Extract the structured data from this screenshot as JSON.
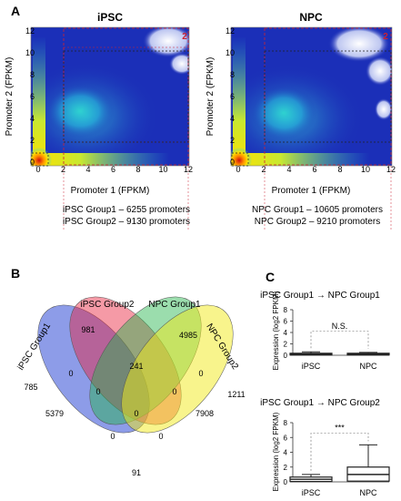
{
  "panel_labels": {
    "A": "A",
    "B": "B",
    "C": "C"
  },
  "colors": {
    "heat_low": "#1b2fb8",
    "heat_mid": "#2fd6d0",
    "heat_high": "#ffe000",
    "heat_peak": "#d21010",
    "box_red": "#cc2233",
    "box_black": "#222222",
    "venn_blue": "#2f4bd6",
    "venn_red": "#e8203a",
    "venn_green": "#22b34a",
    "venn_yellow": "#f2ea1a"
  },
  "chart_data": [
    {
      "type": "heatmap",
      "title": "iPSC",
      "xlabel": "Promoter 1 (FPKM)",
      "ylabel": "Promoter 2 (FPKM)",
      "xlim": [
        0,
        12
      ],
      "ylim": [
        0,
        12
      ],
      "xticks": [
        "0",
        "2",
        "4",
        "6",
        "8",
        "10",
        "12"
      ],
      "yticks": [
        "0",
        "2",
        "4",
        "6",
        "8",
        "10",
        "12"
      ],
      "region_label": "2",
      "captions": [
        "iPSC Group1 – 6255 promoters",
        "iPSC Group2 – 9130 promoters"
      ]
    },
    {
      "type": "heatmap",
      "title": "NPC",
      "xlabel": "Promoter 1 (FPKM)",
      "ylabel": "Promoter 2 (FPKM)",
      "xlim": [
        0,
        12
      ],
      "ylim": [
        0,
        12
      ],
      "xticks": [
        "0",
        "2",
        "4",
        "6",
        "8",
        "10",
        "12"
      ],
      "yticks": [
        "0",
        "2",
        "4",
        "6",
        "8",
        "10",
        "12"
      ],
      "region_label": "2",
      "captions": [
        "NPC Group1 – 10605 promoters",
        "NPC Group2 – 9210 promoters"
      ]
    },
    {
      "type": "venn",
      "sets": [
        "iPSC Group1",
        "iPSC Group2",
        "NPC Group1",
        "NPC Group2"
      ],
      "regions": [
        {
          "sets": [
            "iPSC Group1"
          ],
          "value": "785"
        },
        {
          "sets": [
            "iPSC Group2"
          ],
          "value": "981"
        },
        {
          "sets": [
            "NPC Group1"
          ],
          "value": "4985"
        },
        {
          "sets": [
            "NPC Group2"
          ],
          "value": "1211"
        },
        {
          "sets": [
            "iPSC Group1",
            "iPSC Group2"
          ],
          "value": "0"
        },
        {
          "sets": [
            "iPSC Group2",
            "NPC Group1"
          ],
          "value": "241"
        },
        {
          "sets": [
            "NPC Group1",
            "NPC Group2"
          ],
          "value": "0"
        },
        {
          "sets": [
            "iPSC Group1",
            "NPC Group1"
          ],
          "value": "5379"
        },
        {
          "sets": [
            "iPSC Group2",
            "NPC Group2"
          ],
          "value": "7908"
        },
        {
          "sets": [
            "iPSC Group1",
            "iPSC Group2",
            "NPC Group1"
          ],
          "value": "0"
        },
        {
          "sets": [
            "iPSC Group2",
            "NPC Group1",
            "NPC Group2"
          ],
          "value": "0"
        },
        {
          "sets": [
            "all"
          ],
          "value": "0"
        },
        {
          "sets": [
            "iPSC Group1",
            "NPC Group1",
            "NPC Group2"
          ],
          "value": "0"
        },
        {
          "sets": [
            "iPSC Group1",
            "iPSC Group2",
            "NPC Group2"
          ],
          "value": "0"
        },
        {
          "sets": [
            "iPSC Group1",
            "NPC Group2"
          ],
          "value": "91"
        }
      ]
    },
    {
      "type": "box",
      "title": "iPSC Group1 → NPC Group1",
      "ylabel": "Expression (log2 FPKM)",
      "ylim": [
        0,
        8
      ],
      "yticks": [
        "0",
        "2",
        "4",
        "6",
        "8"
      ],
      "categories": [
        "iPSC",
        "NPC"
      ],
      "boxes": [
        {
          "min": 0,
          "q1": 0.05,
          "median": 0.2,
          "q3": 0.35,
          "max": 0.6
        },
        {
          "min": 0,
          "q1": 0.05,
          "median": 0.2,
          "q3": 0.35,
          "max": 0.5
        }
      ],
      "significance": "N.S."
    },
    {
      "type": "box",
      "title": "iPSC Group1 → NPC Group2",
      "ylabel": "Expression (log2 FPKM)",
      "ylim": [
        0,
        8
      ],
      "yticks": [
        "0",
        "2",
        "4",
        "6",
        "8"
      ],
      "categories": [
        "iPSC",
        "NPC"
      ],
      "boxes": [
        {
          "min": 0,
          "q1": 0.05,
          "median": 0.35,
          "q3": 0.65,
          "max": 1.0
        },
        {
          "min": 0,
          "q1": 0.1,
          "median": 1.0,
          "q3": 2.0,
          "max": 5.0
        }
      ],
      "significance": "***"
    }
  ]
}
